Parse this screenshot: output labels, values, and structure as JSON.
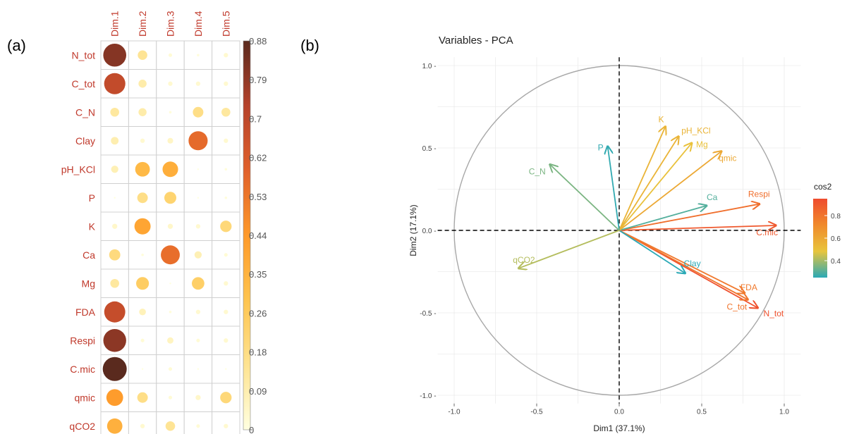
{
  "panels": {
    "a_label": "(a)",
    "b_label": "(b)"
  },
  "chart_data": [
    {
      "type": "heatmap",
      "rows": [
        "N_tot",
        "C_tot",
        "C_N",
        "Clay",
        "pH_KCl",
        "P",
        "K",
        "Ca",
        "Mg",
        "FDA",
        "Respi",
        "C.mic",
        "qmic",
        "qCO2"
      ],
      "columns": [
        "Dim.1",
        "Dim.2",
        "Dim.3",
        "Dim.4",
        "Dim.5"
      ],
      "values": [
        [
          0.81,
          0.14,
          0.02,
          0.01,
          0.03
        ],
        [
          0.69,
          0.1,
          0.03,
          0.03,
          0.03
        ],
        [
          0.12,
          0.1,
          0.01,
          0.17,
          0.12
        ],
        [
          0.09,
          0.03,
          0.05,
          0.56,
          0.03
        ],
        [
          0.08,
          0.33,
          0.37,
          0.0,
          0.01
        ],
        [
          0.0,
          0.17,
          0.22,
          0.0,
          0.01
        ],
        [
          0.04,
          0.4,
          0.04,
          0.03,
          0.2
        ],
        [
          0.19,
          0.01,
          0.55,
          0.08,
          0.02
        ],
        [
          0.12,
          0.25,
          0.0,
          0.24,
          0.03
        ],
        [
          0.68,
          0.07,
          0.01,
          0.03,
          0.03
        ],
        [
          0.8,
          0.02,
          0.06,
          0.02,
          0.03
        ],
        [
          0.88,
          0.0,
          0.02,
          0.0,
          0.0
        ],
        [
          0.43,
          0.17,
          0.02,
          0.04,
          0.2
        ],
        [
          0.36,
          0.03,
          0.14,
          0.02,
          0.03
        ]
      ],
      "legend_range": [
        0,
        0.88
      ],
      "legend_ticks": [
        "0.88",
        "0.79",
        "0.7",
        "0.62",
        "0.53",
        "0.44",
        "0.35",
        "0.26",
        "0.18",
        "0.09",
        "0"
      ],
      "colors": [
        "#ffffe0",
        "#fee391",
        "#fec44f",
        "#fe9929",
        "#e0602b",
        "#b5422b",
        "#5a2a1e"
      ],
      "label_color": "#c0392b"
    },
    {
      "type": "scatter",
      "title": "Variables - PCA",
      "xlabel": "Dim1 (37.1%)",
      "ylabel": "Dim2 (17.1%)",
      "xlim": [
        -1.1,
        1.1
      ],
      "ylim": [
        -1.05,
        1.05
      ],
      "xticks": [
        -1.0,
        -0.5,
        0.0,
        0.5,
        1.0
      ],
      "yticks": [
        -1.0,
        -0.5,
        0.0,
        0.5,
        1.0
      ],
      "xtick_labels": [
        "-1.0",
        "-0.5",
        "0.0",
        "0.5",
        "1.0"
      ],
      "ytick_labels": [
        "-1.0 -",
        "-0.5 -",
        "0.0 -",
        "0.5 -",
        "1.0 -"
      ],
      "grid": true,
      "legend": {
        "title": "cos2",
        "ticks": [
          "0.8",
          "0.6",
          "0.4"
        ],
        "tick_values": [
          0.8,
          0.6,
          0.4
        ],
        "range": [
          0.25,
          0.95
        ],
        "placement": "right"
      },
      "colors": [
        "#2aa9b6",
        "#e8c53c",
        "#f08a2c",
        "#ef4c2e"
      ],
      "vectors": [
        {
          "name": "N_tot",
          "x": 0.84,
          "y": -0.47,
          "cos2": 0.93
        },
        {
          "name": "C_tot",
          "x": 0.78,
          "y": -0.42,
          "cos2": 0.8
        },
        {
          "name": "FDA",
          "x": 0.76,
          "y": -0.38,
          "cos2": 0.78
        },
        {
          "name": "Clay",
          "x": 0.4,
          "y": -0.26,
          "cos2": 0.23
        },
        {
          "name": "C.mic",
          "x": 0.95,
          "y": 0.03,
          "cos2": 0.9
        },
        {
          "name": "Respi",
          "x": 0.85,
          "y": 0.16,
          "cos2": 0.82
        },
        {
          "name": "Ca",
          "x": 0.53,
          "y": 0.15,
          "cos2": 0.3
        },
        {
          "name": "qmic",
          "x": 0.62,
          "y": 0.48,
          "cos2": 0.6
        },
        {
          "name": "Mg",
          "x": 0.44,
          "y": 0.53,
          "cos2": 0.5
        },
        {
          "name": "pH_KCl",
          "x": 0.36,
          "y": 0.57,
          "cos2": 0.55
        },
        {
          "name": "K",
          "x": 0.28,
          "y": 0.63,
          "cos2": 0.55
        },
        {
          "name": "P",
          "x": -0.07,
          "y": 0.51,
          "cos2": 0.26
        },
        {
          "name": "C_N",
          "x": -0.42,
          "y": 0.4,
          "cos2": 0.35
        },
        {
          "name": "qCO2",
          "x": -0.61,
          "y": -0.23,
          "cos2": 0.42
        }
      ]
    }
  ]
}
